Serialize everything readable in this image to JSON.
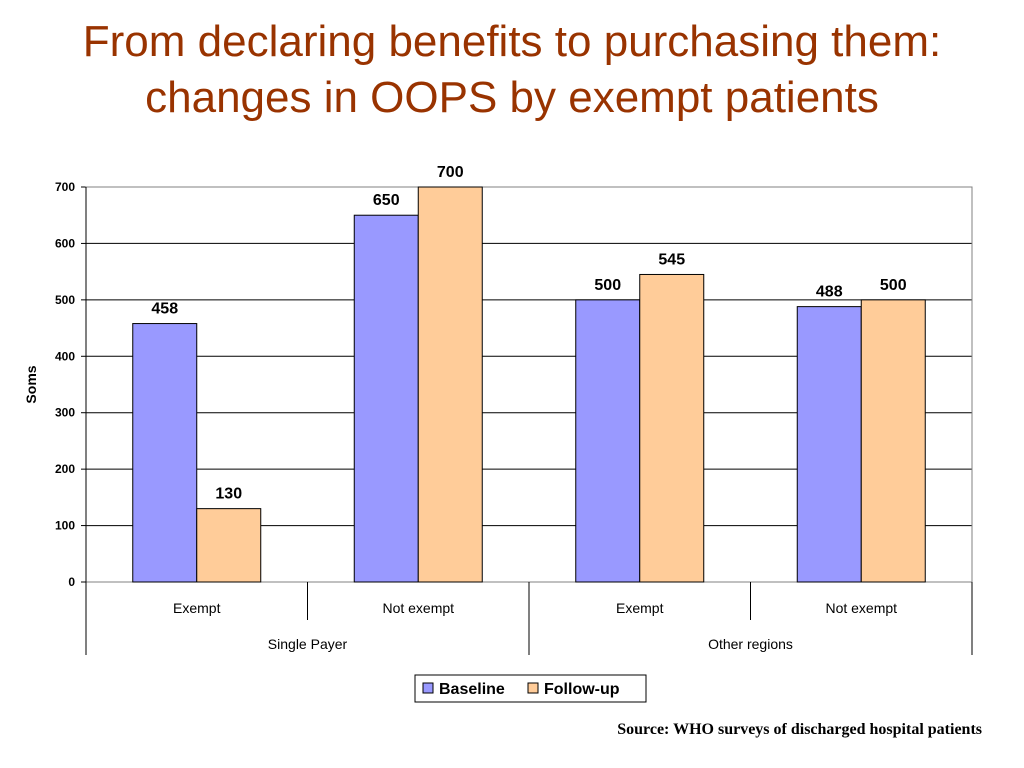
{
  "slide": {
    "title_line1": "From declaring benefits to purchasing them:",
    "title_line2": "changes in OOPS by exempt patients",
    "source": "Source:  WHO surveys of discharged hospital patients"
  },
  "colors": {
    "title": "#993300",
    "baseline": "#9999FF",
    "followup": "#FFCC99",
    "grid": "#000000"
  },
  "chart_data": {
    "type": "bar",
    "title": "",
    "xlabel": "",
    "ylabel": "Soms",
    "ylim": [
      0,
      700
    ],
    "yticks": [
      0,
      100,
      200,
      300,
      400,
      500,
      600,
      700
    ],
    "grid": true,
    "legend_position": "bottom",
    "categories": [
      "Exempt",
      "Not exempt",
      "Exempt",
      "Not exempt"
    ],
    "groups": [
      {
        "label": "Single Payer",
        "categories": [
          "Exempt",
          "Not exempt"
        ]
      },
      {
        "label": "Other regions",
        "categories": [
          "Exempt",
          "Not exempt"
        ]
      }
    ],
    "series": [
      {
        "name": "Baseline",
        "values": [
          458,
          650,
          500,
          488
        ]
      },
      {
        "name": "Follow-up",
        "values": [
          130,
          700,
          545,
          500
        ]
      }
    ],
    "data_labels": true
  }
}
